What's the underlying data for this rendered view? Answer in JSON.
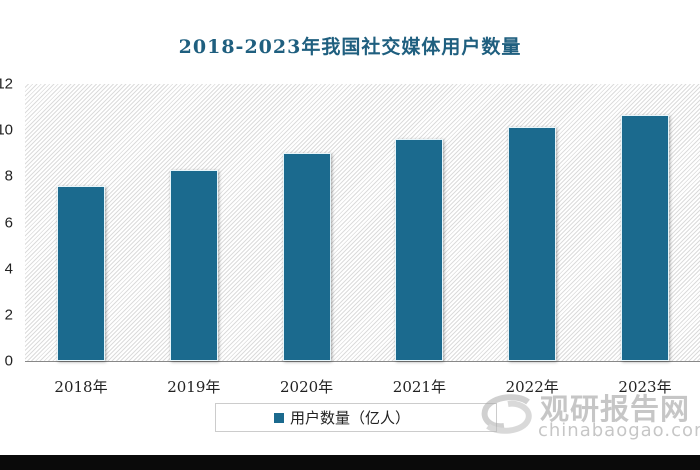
{
  "chart_data": {
    "type": "bar",
    "title": "2018-2023年我国社交媒体用户数量",
    "categories": [
      "2018年",
      "2019年",
      "2020年",
      "2021年",
      "2022年",
      "2023年"
    ],
    "series": [
      {
        "name": "用户数量（亿人）",
        "values": [
          7.58,
          8.27,
          9.0,
          9.61,
          10.13,
          10.65
        ]
      }
    ],
    "yticks": [
      "12",
      "10",
      "8",
      "6",
      "4",
      "2",
      "0"
    ],
    "ylim": [
      0,
      12
    ],
    "grid": false,
    "legend": "bottom",
    "bar_color": "#1b6a8e"
  },
  "watermark": {
    "name": "观研报告网",
    "url": "chinabaogao.com"
  }
}
